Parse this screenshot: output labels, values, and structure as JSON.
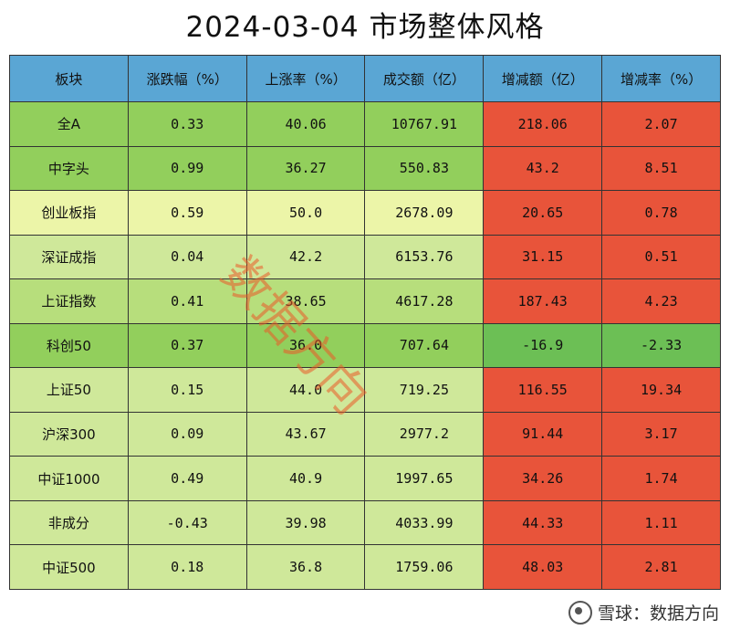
{
  "colors": {
    "header": "#5aa6d4",
    "green_dark": "#92cf5c",
    "green_light": "#cfe89a",
    "green_mid": "#b7de7c",
    "yellow": "#ecf5a8",
    "red": "#e8543a",
    "red_green": "#6cbf55"
  },
  "chart_data": {
    "type": "table",
    "title": "2024-03-04 市场整体风格",
    "columns": [
      "板块",
      "涨跌幅（%）",
      "上涨率（%）",
      "成交额（亿）",
      "增减额（亿）",
      "增减率（%）"
    ],
    "rows": [
      {
        "name": "全A",
        "change": "0.33",
        "rise_rate": "40.06",
        "turnover": "10767.91",
        "delta": "218.06",
        "delta_rate": "2.07"
      },
      {
        "name": "中字头",
        "change": "0.99",
        "rise_rate": "36.27",
        "turnover": "550.83",
        "delta": "43.2",
        "delta_rate": "8.51"
      },
      {
        "name": "创业板指",
        "change": "0.59",
        "rise_rate": "50.0",
        "turnover": "2678.09",
        "delta": "20.65",
        "delta_rate": "0.78"
      },
      {
        "name": "深证成指",
        "change": "0.04",
        "rise_rate": "42.2",
        "turnover": "6153.76",
        "delta": "31.15",
        "delta_rate": "0.51"
      },
      {
        "name": "上证指数",
        "change": "0.41",
        "rise_rate": "38.65",
        "turnover": "4617.28",
        "delta": "187.43",
        "delta_rate": "4.23"
      },
      {
        "name": "科创50",
        "change": "0.37",
        "rise_rate": "36.0",
        "turnover": "707.64",
        "delta": "-16.9",
        "delta_rate": "-2.33"
      },
      {
        "name": "上证50",
        "change": "0.15",
        "rise_rate": "44.0",
        "turnover": "719.25",
        "delta": "116.55",
        "delta_rate": "19.34"
      },
      {
        "name": "沪深300",
        "change": "0.09",
        "rise_rate": "43.67",
        "turnover": "2977.2",
        "delta": "91.44",
        "delta_rate": "3.17"
      },
      {
        "name": "中证1000",
        "change": "0.49",
        "rise_rate": "40.9",
        "turnover": "1997.65",
        "delta": "34.26",
        "delta_rate": "1.74"
      },
      {
        "name": "非成分",
        "change": "-0.43",
        "rise_rate": "39.98",
        "turnover": "4033.99",
        "delta": "44.33",
        "delta_rate": "1.11"
      },
      {
        "name": "中证500",
        "change": "0.18",
        "rise_rate": "36.8",
        "turnover": "1759.06",
        "delta": "48.03",
        "delta_rate": "2.81"
      }
    ],
    "row_fill": [
      "green_dark",
      "green_dark",
      "yellow",
      "green_light",
      "green_mid",
      "green_dark",
      "green_light",
      "green_light",
      "green_light",
      "green_light",
      "green_light"
    ]
  },
  "watermark": "数据方向",
  "footer": {
    "text": "雪球：数据方向"
  }
}
